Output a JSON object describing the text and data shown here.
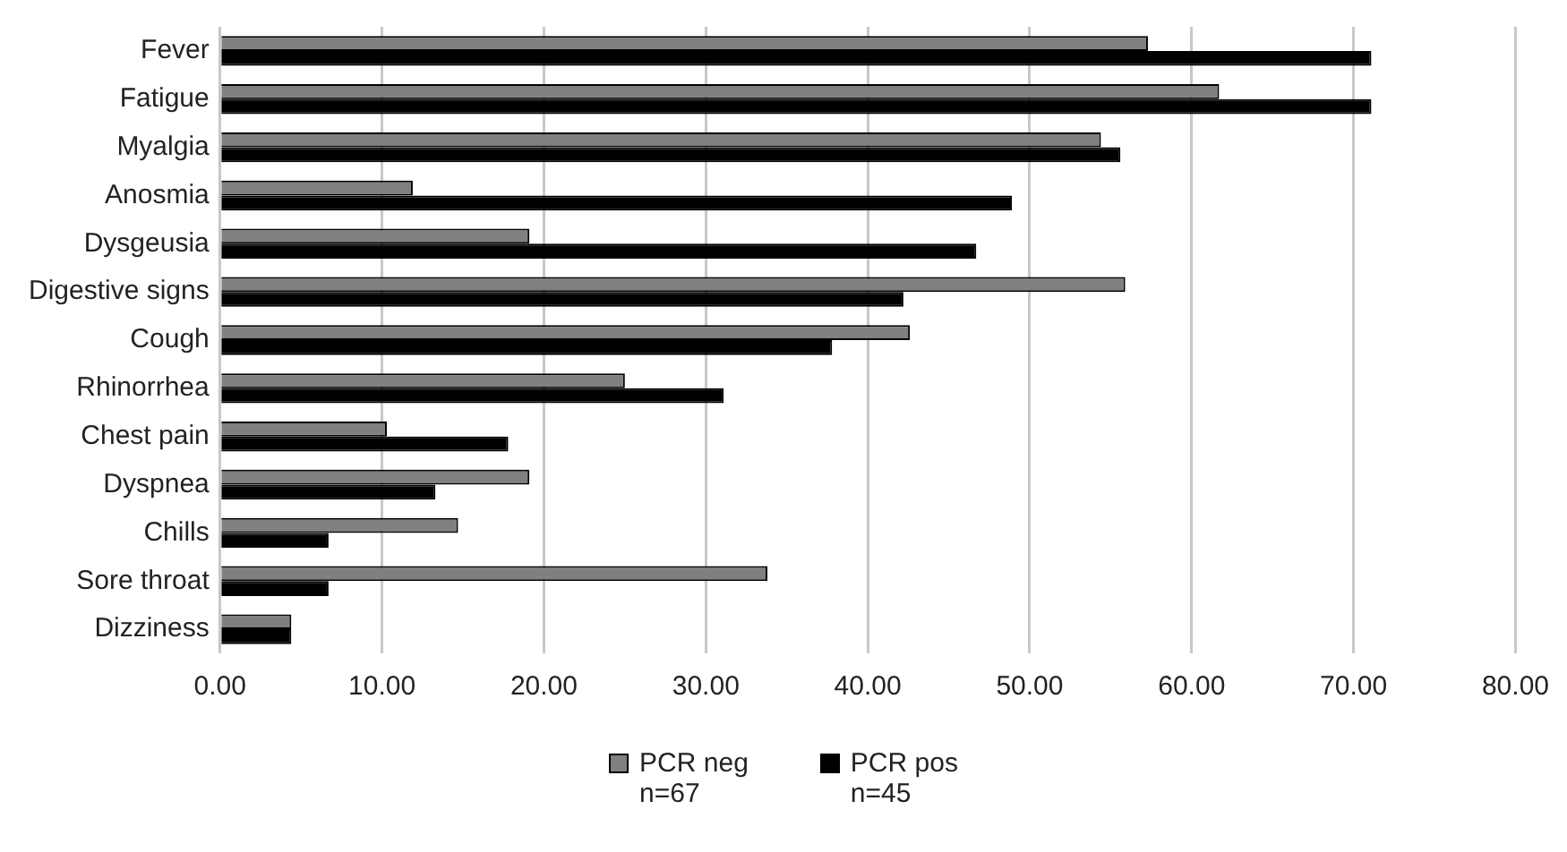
{
  "chart_data": {
    "type": "bar",
    "orientation": "horizontal",
    "categories": [
      "Fever",
      "Fatigue",
      "Myalgia",
      "Anosmia",
      "Dysgeusia",
      "Digestive signs",
      "Cough",
      "Rhinorrhea",
      "Chest pain",
      "Dyspnea",
      "Chills",
      "Sore throat",
      "Dizziness"
    ],
    "series": [
      {
        "name": "PCR neg",
        "color": "#808080",
        "values": [
          57.3,
          61.7,
          54.4,
          11.9,
          19.1,
          55.9,
          42.6,
          25.0,
          10.3,
          19.1,
          14.7,
          33.8,
          4.4
        ]
      },
      {
        "name": "PCR pos",
        "color": "#000000",
        "values": [
          71.1,
          71.1,
          55.6,
          48.9,
          46.7,
          42.2,
          37.8,
          31.1,
          17.8,
          13.3,
          6.7,
          6.7,
          4.4
        ]
      }
    ],
    "xlim": [
      0,
      80
    ],
    "xticks": [
      {
        "value": 0,
        "label": "0.00"
      },
      {
        "value": 10,
        "label": "10.00"
      },
      {
        "value": 20,
        "label": "20.00"
      },
      {
        "value": 30,
        "label": "30.00"
      },
      {
        "value": 40,
        "label": "40.00"
      },
      {
        "value": 50,
        "label": "50.00"
      },
      {
        "value": 60,
        "label": "60.00"
      },
      {
        "value": 70,
        "label": "70.00"
      },
      {
        "value": 80,
        "label": "80.00"
      }
    ],
    "grid": "x",
    "legend": "bottom",
    "annotations": [
      "n=67",
      "n=45"
    ]
  }
}
